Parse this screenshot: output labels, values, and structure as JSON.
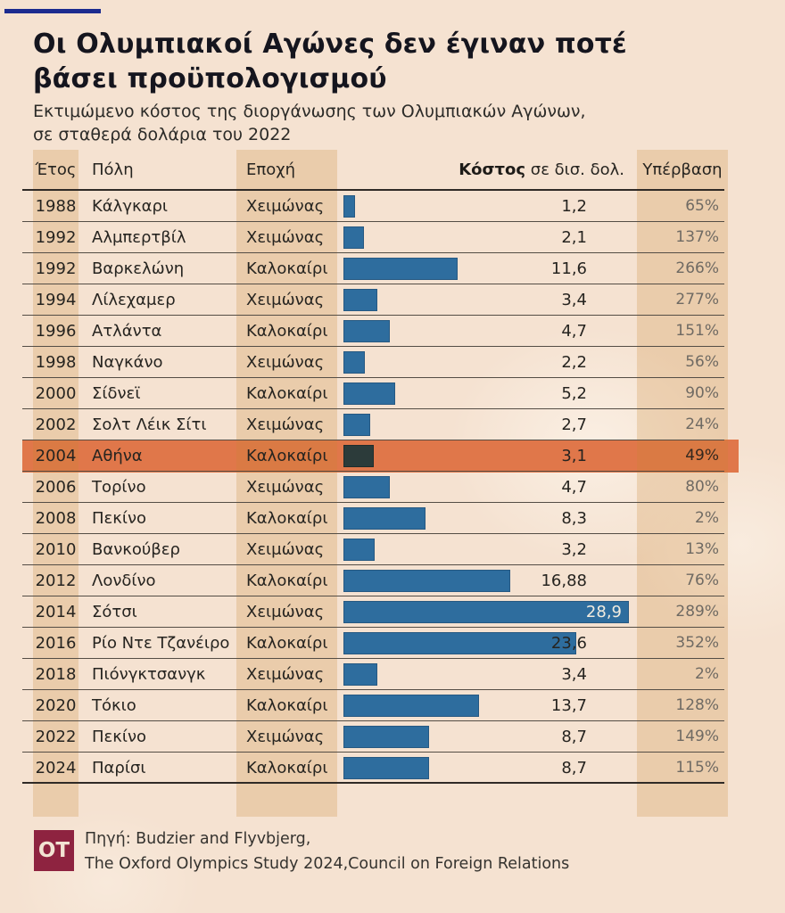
{
  "accent_color": "#1c2b8f",
  "title_line1": "Οι Ολυμπιακοί Αγώνες δεν έγιναν ποτέ",
  "title_line2": "βάσει προϋπολογισμού",
  "subtitle_line1": "Εκτιμώμενο κόστος της διοργάνωσης των Ολυμπιακών Αγώνων,",
  "subtitle_line2": "σε σταθερά δολάρια του 2022",
  "table": {
    "headers": {
      "year": "Έτος",
      "city": "Πόλη",
      "season": "Εποχή",
      "cost_bold": "Κόστος",
      "cost_rest": " σε δισ. δολ.",
      "overrun": "Υπέρβαση"
    },
    "rows": [
      {
        "year": "1988",
        "city": "Κάλγκαρι",
        "season": "Χειμώνας",
        "cost_label": "1,2",
        "value": 1.2,
        "overrun": "65%",
        "highlight": false,
        "label_inside": false
      },
      {
        "year": "1992",
        "city": "Αλμπερτβίλ",
        "season": "Χειμώνας",
        "cost_label": "2,1",
        "value": 2.1,
        "overrun": "137%",
        "highlight": false,
        "label_inside": false
      },
      {
        "year": "1992",
        "city": "Βαρκελώνη",
        "season": "Καλοκαίρι",
        "cost_label": "11,6",
        "value": 11.6,
        "overrun": "266%",
        "highlight": false,
        "label_inside": false
      },
      {
        "year": "1994",
        "city": "Λίλεχαμερ",
        "season": "Χειμώνας",
        "cost_label": "3,4",
        "value": 3.4,
        "overrun": "277%",
        "highlight": false,
        "label_inside": false
      },
      {
        "year": "1996",
        "city": "Ατλάντα",
        "season": "Καλοκαίρι",
        "cost_label": "4,7",
        "value": 4.7,
        "overrun": "151%",
        "highlight": false,
        "label_inside": false
      },
      {
        "year": "1998",
        "city": "Ναγκάνο",
        "season": "Χειμώνας",
        "cost_label": "2,2",
        "value": 2.2,
        "overrun": "56%",
        "highlight": false,
        "label_inside": false
      },
      {
        "year": "2000",
        "city": "Σίδνεϊ",
        "season": "Καλοκαίρι",
        "cost_label": "5,2",
        "value": 5.2,
        "overrun": "90%",
        "highlight": false,
        "label_inside": false
      },
      {
        "year": "2002",
        "city": "Σολτ Λέικ Σίτι",
        "season": "Χειμώνας",
        "cost_label": "2,7",
        "value": 2.7,
        "overrun": "24%",
        "highlight": false,
        "label_inside": false
      },
      {
        "year": "2004",
        "city": "Αθήνα",
        "season": "Καλοκαίρι",
        "cost_label": "3,1",
        "value": 3.1,
        "overrun": "49%",
        "highlight": true,
        "label_inside": false
      },
      {
        "year": "2006",
        "city": "Τορίνο",
        "season": "Χειμώνας",
        "cost_label": "4,7",
        "value": 4.7,
        "overrun": "80%",
        "highlight": false,
        "label_inside": false
      },
      {
        "year": "2008",
        "city": "Πεκίνο",
        "season": "Καλοκαίρι",
        "cost_label": "8,3",
        "value": 8.3,
        "overrun": "2%",
        "highlight": false,
        "label_inside": false
      },
      {
        "year": "2010",
        "city": "Βανκούβερ",
        "season": "Χειμώνας",
        "cost_label": "3,2",
        "value": 3.2,
        "overrun": "13%",
        "highlight": false,
        "label_inside": false
      },
      {
        "year": "2012",
        "city": "Λονδίνο",
        "season": "Καλοκαίρι",
        "cost_label": "16,88",
        "value": 16.88,
        "overrun": "76%",
        "highlight": false,
        "label_inside": false
      },
      {
        "year": "2014",
        "city": "Σότσι",
        "season": "Χειμώνας",
        "cost_label": "28,9",
        "value": 28.9,
        "overrun": "289%",
        "highlight": false,
        "label_inside": true
      },
      {
        "year": "2016",
        "city": "Ρίο Ντε Τζανέιρο",
        "season": "Καλοκαίρι",
        "cost_label": "23,6",
        "value": 23.6,
        "overrun": "352%",
        "highlight": false,
        "label_inside": false
      },
      {
        "year": "2018",
        "city": "Πιόνγκτσανγκ",
        "season": "Χειμώνας",
        "cost_label": "3,4",
        "value": 3.4,
        "overrun": "2%",
        "highlight": false,
        "label_inside": false
      },
      {
        "year": "2020",
        "city": "Τόκιο",
        "season": "Καλοκαίρι",
        "cost_label": "13,7",
        "value": 13.7,
        "overrun": "128%",
        "highlight": false,
        "label_inside": false
      },
      {
        "year": "2022",
        "city": "Πεκίνο",
        "season": "Χειμώνας",
        "cost_label": "8,7",
        "value": 8.7,
        "overrun": "149%",
        "highlight": false,
        "label_inside": false
      },
      {
        "year": "2024",
        "city": "Παρίσι",
        "season": "Καλοκαίρι",
        "cost_label": "8,7",
        "value": 8.7,
        "overrun": "115%",
        "highlight": false,
        "label_inside": false
      }
    ]
  },
  "footer": {
    "logo_text": "OT",
    "source_line1": "Πηγή: Budzier and Flyvbjerg,",
    "source_line2": "The Oxford Olympics Study 2024,Council on Foreign Relations"
  },
  "colors": {
    "background": "#f5e2d1",
    "column_band": "#ebceae",
    "bar": "#2e6d9e",
    "bar_highlight": "#2c3b3a",
    "highlight_row": "#e0774a",
    "accent_line": "#1c2b8f",
    "logo_background": "#8e2340",
    "overrun_text": "#6f6a63"
  },
  "chart_data": {
    "type": "bar",
    "orientation": "horizontal",
    "title": "Οι Ολυμπιακοί Αγώνες δεν έγιναν ποτέ βάσει προϋπολογισμού",
    "subtitle": "Εκτιμώμενο κόστος της διοργάνωσης των Ολυμπιακών Αγώνων, σε σταθερά δολάρια του 2022",
    "unit": "δισ. δολ.",
    "xlim": [
      0,
      28.9
    ],
    "grid": false,
    "legend": false,
    "categories": [
      "1988 Κάλγκαρι",
      "1992 Αλμπερτβίλ",
      "1992 Βαρκελώνη",
      "1994 Λίλεχαμερ",
      "1996 Ατλάντα",
      "1998 Ναγκάνο",
      "2000 Σίδνεϊ",
      "2002 Σολτ Λέικ Σίτι",
      "2004 Αθήνα",
      "2006 Τορίνο",
      "2008 Πεκίνο",
      "2010 Βανκούβερ",
      "2012 Λονδίνο",
      "2014 Σότσι",
      "2016 Ρίο Ντε Τζανέιρο",
      "2018 Πιόνγκτσανγκ",
      "2020 Τόκιο",
      "2022 Πεκίνο",
      "2024 Παρίσι"
    ],
    "seasons": [
      "Χειμώνας",
      "Χειμώνας",
      "Καλοκαίρι",
      "Χειμώνας",
      "Καλοκαίρι",
      "Χειμώνας",
      "Καλοκαίρι",
      "Χειμώνας",
      "Καλοκαίρι",
      "Χειμώνας",
      "Καλοκαίρι",
      "Χειμώνας",
      "Καλοκαίρι",
      "Χειμώνας",
      "Καλοκαίρι",
      "Χειμώνας",
      "Καλοκαίρι",
      "Χειμώνας",
      "Καλοκαίρι"
    ],
    "values": [
      1.2,
      2.1,
      11.6,
      3.4,
      4.7,
      2.2,
      5.2,
      2.7,
      3.1,
      4.7,
      8.3,
      3.2,
      16.88,
      28.9,
      23.6,
      3.4,
      13.7,
      8.7,
      8.7
    ],
    "overrun_percent": [
      65,
      137,
      266,
      277,
      151,
      56,
      90,
      24,
      49,
      80,
      2,
      13,
      76,
      289,
      352,
      2,
      128,
      149,
      115
    ],
    "highlighted_category": "2004 Αθήνα"
  }
}
